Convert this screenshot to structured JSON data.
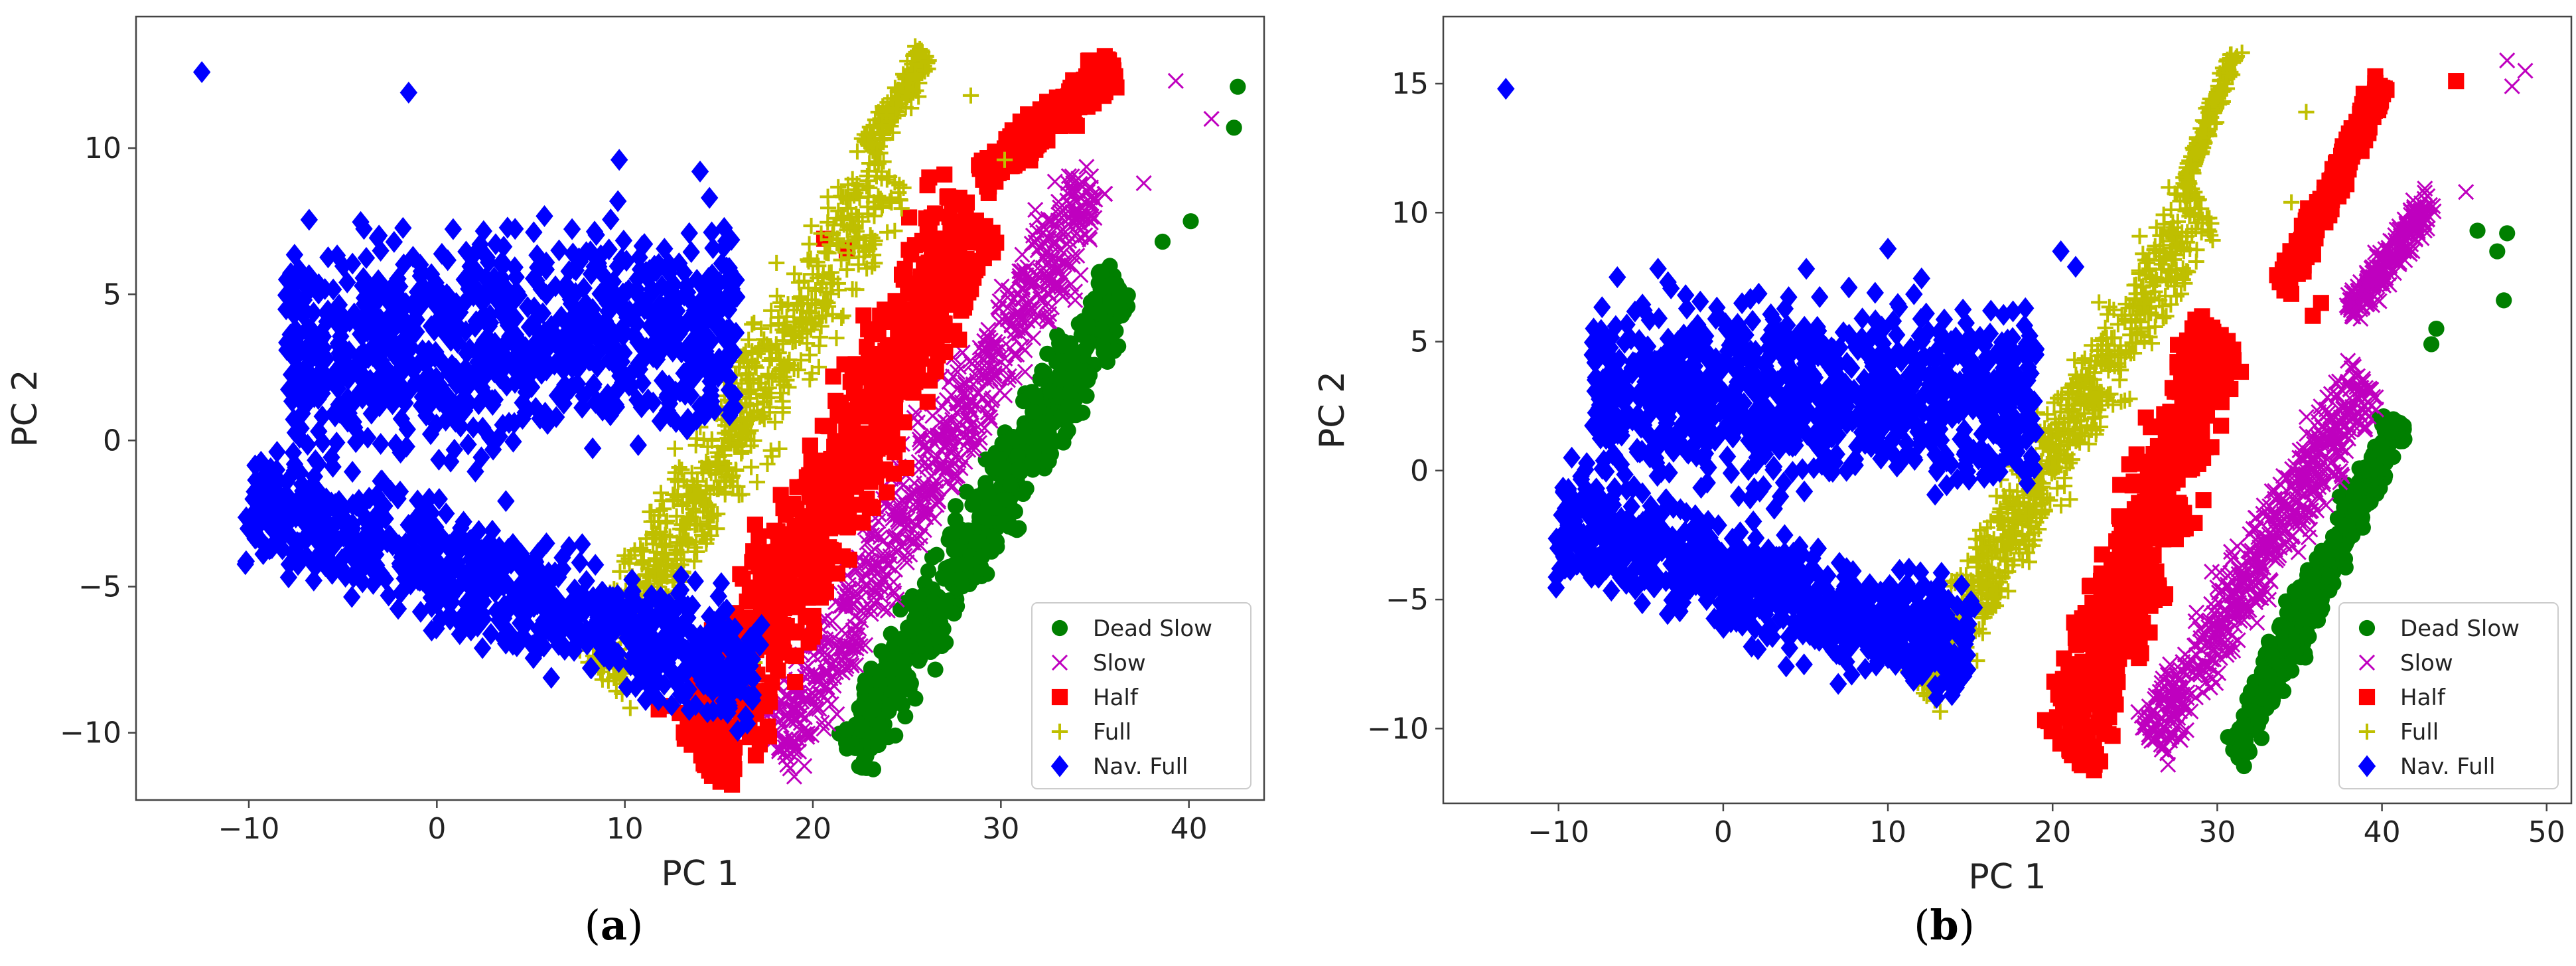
{
  "chart_data": [
    {
      "type": "scatter",
      "panel_label": "(a)",
      "xlabel": "PC 1",
      "ylabel": "PC 2",
      "xlim": [
        -16,
        44
      ],
      "ylim": [
        -12.3,
        14.5
      ],
      "xticks": [
        -10,
        0,
        10,
        20,
        30,
        40
      ],
      "yticks": [
        -10,
        -5,
        0,
        5,
        10
      ],
      "grid": false,
      "legend_position": "bottom-right",
      "series": [
        {
          "name": "Dead Slow",
          "color": "#007f00",
          "marker": "circle",
          "clusters": [
            {
              "from": [
                22,
                -10.8
              ],
              "to": [
                36.5,
                5.5
              ],
              "width": 3.5
            }
          ],
          "points": [
            [
              42.6,
              12.1
            ],
            [
              42.4,
              10.7
            ],
            [
              40.1,
              7.5
            ],
            [
              38.6,
              6.8
            ]
          ]
        },
        {
          "name": "Slow",
          "color": "#bf00bf",
          "marker": "x",
          "clusters": [
            {
              "from": [
                18,
                -10.7
              ],
              "to": [
                35,
                9.0
              ],
              "width": 4.5
            }
          ],
          "points": [
            [
              39.3,
              12.3
            ],
            [
              41.2,
              11.0
            ],
            [
              37.6,
              8.8
            ],
            [
              34.1,
              12.0
            ]
          ]
        },
        {
          "name": "Half",
          "color": "#ff0000",
          "marker": "square",
          "clusters": [
            {
              "from": [
                14,
                -11.0
              ],
              "to": [
                28.5,
                8.0
              ],
              "width": 6.0
            },
            {
              "from": [
                29,
                9.0
              ],
              "to": [
                36,
                12.8
              ],
              "width": 2.0
            }
          ],
          "points": [
            [
              34.7,
              13.0
            ],
            [
              36.0,
              12.4
            ],
            [
              31.0,
              10.5
            ],
            [
              20.6,
              6.9
            ],
            [
              21.8,
              6.5
            ],
            [
              13.7,
              -8.2
            ],
            [
              11.8,
              -9.2
            ]
          ]
        },
        {
          "name": "Full",
          "color": "#bfbf00",
          "marker": "plus",
          "clusters": [
            {
              "from": [
                8.5,
                -8.0
              ],
              "to": [
                24,
                9.5
              ],
              "width": 5.0
            },
            {
              "from": [
                23,
                10.0
              ],
              "to": [
                26,
                13.2
              ],
              "width": 1.5
            }
          ],
          "points": [
            [
              28.4,
              11.8
            ],
            [
              30.2,
              9.6
            ],
            [
              15.6,
              -1.4
            ],
            [
              16.9,
              -7.6
            ]
          ]
        },
        {
          "name": "Nav. Full",
          "color": "#0000ff",
          "marker": "diamond",
          "clusters": [
            {
              "from": [
                -10,
                -2
              ],
              "to": [
                17,
                -8
              ],
              "width": 6
            },
            {
              "from": [
                -8,
                3
              ],
              "to": [
                16,
                4
              ],
              "width": 10
            }
          ],
          "points": [
            [
              -12.5,
              12.6
            ],
            [
              -1.5,
              11.9
            ],
            [
              9.7,
              9.6
            ],
            [
              14.0,
              9.2
            ],
            [
              14.5,
              8.3
            ]
          ]
        }
      ]
    },
    {
      "type": "scatter",
      "panel_label": "(b)",
      "xlabel": "PC 1",
      "ylabel": "PC 2",
      "xlim": [
        -17,
        51.5
      ],
      "ylim": [
        -12.9,
        17.6
      ],
      "xticks": [
        -10,
        0,
        10,
        20,
        30,
        40,
        50
      ],
      "yticks": [
        -10,
        -5,
        0,
        5,
        10,
        15
      ],
      "grid": false,
      "legend_position": "bottom-right",
      "series": [
        {
          "name": "Dead Slow",
          "color": "#007f00",
          "marker": "circle",
          "clusters": [
            {
              "from": [
                31,
                -11.0
              ],
              "to": [
                41,
                2.0
              ],
              "width": 2.5
            }
          ],
          "points": [
            [
              47.6,
              9.2
            ],
            [
              47.0,
              8.5
            ],
            [
              47.4,
              6.6
            ],
            [
              43.3,
              5.5
            ],
            [
              43.0,
              4.9
            ],
            [
              45.8,
              9.3
            ]
          ]
        },
        {
          "name": "Slow",
          "color": "#bf00bf",
          "marker": "x",
          "clusters": [
            {
              "from": [
                26,
                -10.5
              ],
              "to": [
                39,
                3.5
              ],
              "width": 4.0
            },
            {
              "from": [
                38,
                6.0
              ],
              "to": [
                43,
                10.5
              ],
              "width": 2.0
            }
          ],
          "points": [
            [
              47.6,
              15.9
            ],
            [
              48.7,
              15.5
            ],
            [
              47.9,
              14.9
            ],
            [
              45.1,
              10.8
            ]
          ]
        },
        {
          "name": "Half",
          "color": "#ff0000",
          "marker": "square",
          "clusters": [
            {
              "from": [
                21,
                -11.0
              ],
              "to": [
                30,
                5.5
              ],
              "width": 5.5
            },
            {
              "from": [
                34,
                7.0
              ],
              "to": [
                40,
                15.0
              ],
              "width": 1.6
            }
          ],
          "points": [
            [
              44.5,
              15.1
            ],
            [
              35.8,
              6.0
            ],
            [
              36.3,
              6.5
            ]
          ]
        },
        {
          "name": "Full",
          "color": "#bfbf00",
          "marker": "plus",
          "clusters": [
            {
              "from": [
                12,
                -8.5
              ],
              "to": [
                29,
                10.5
              ],
              "width": 4.5
            },
            {
              "from": [
                28,
                11.0
              ],
              "to": [
                31,
                16.2
              ],
              "width": 1.0
            }
          ],
          "points": [
            [
              31.5,
              16.2
            ],
            [
              34.5,
              10.4
            ],
            [
              35.4,
              13.9
            ],
            [
              15.1,
              -4.3
            ]
          ]
        },
        {
          "name": "Nav. Full",
          "color": "#0000ff",
          "marker": "diamond",
          "clusters": [
            {
              "from": [
                -10,
                -2
              ],
              "to": [
                15,
                -7
              ],
              "width": 6
            },
            {
              "from": [
                -8,
                3
              ],
              "to": [
                19,
                3
              ],
              "width": 10
            }
          ],
          "points": [
            [
              -13.2,
              14.8
            ],
            [
              10.0,
              8.6
            ],
            [
              21.4,
              7.9
            ],
            [
              20.5,
              8.5
            ]
          ]
        }
      ]
    }
  ]
}
